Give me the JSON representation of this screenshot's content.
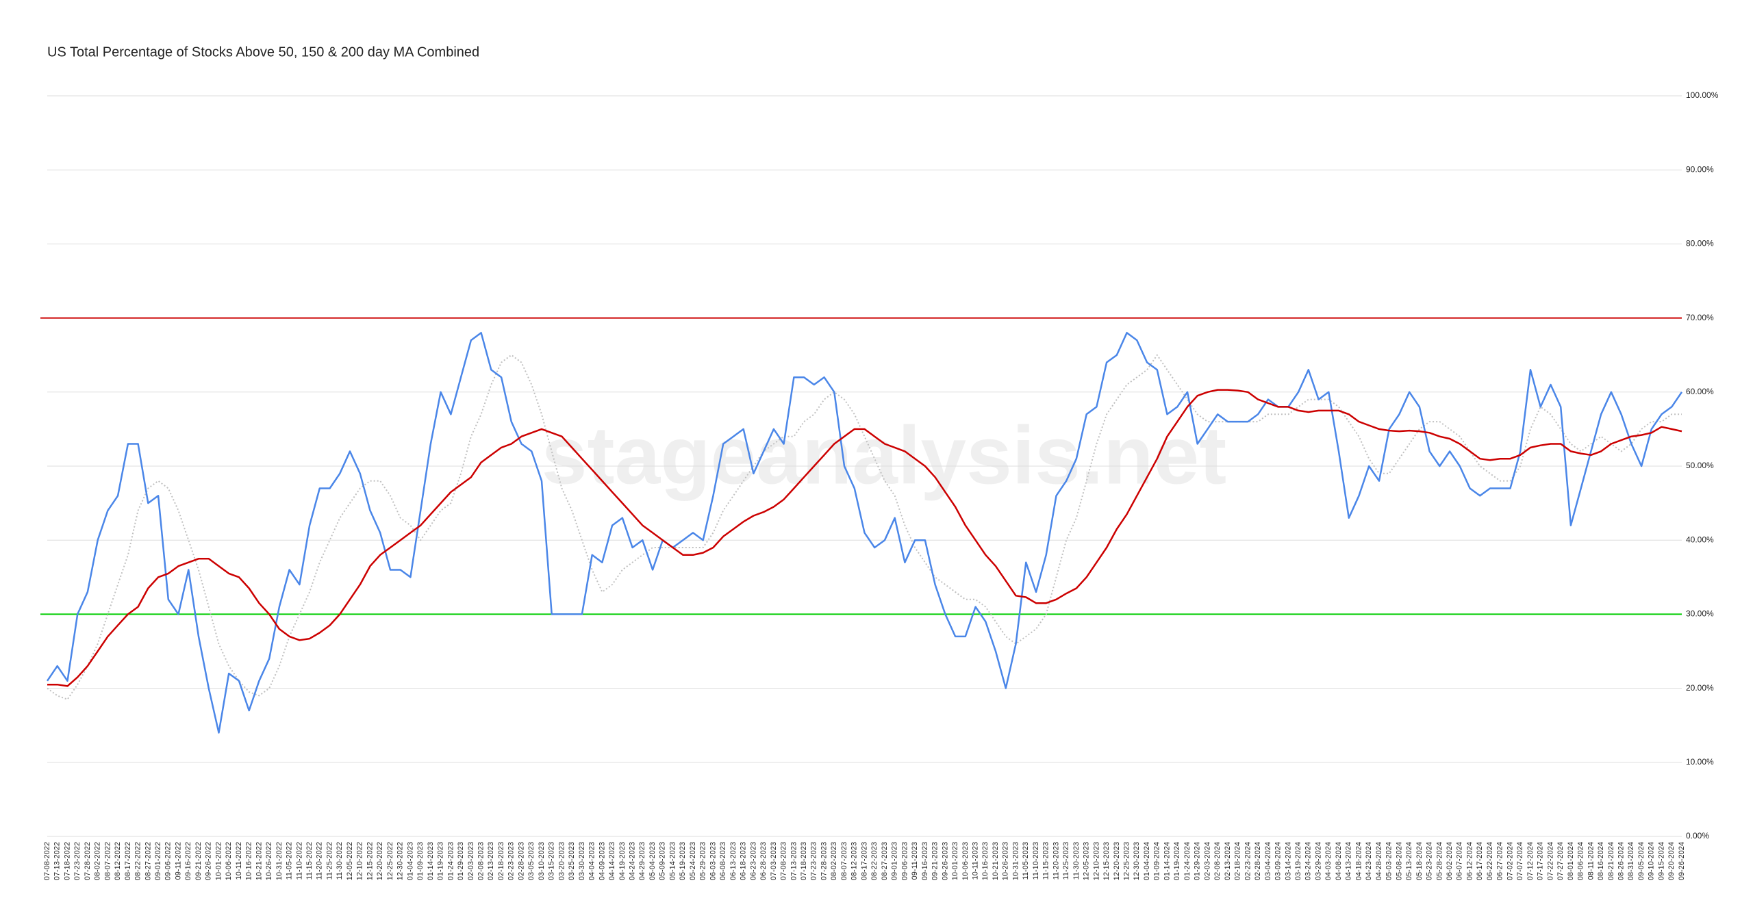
{
  "chart_data": {
    "type": "line",
    "title": "US Total Percentage of Stocks Above 50, 150 & 200 day MA Combined",
    "watermark": "stageanalysis.net",
    "categories": [
      "07-08-2022",
      "07-13-2022",
      "07-18-2022",
      "07-23-2022",
      "07-28-2022",
      "08-02-2022",
      "08-07-2022",
      "08-12-2022",
      "08-17-2022",
      "08-22-2022",
      "08-27-2022",
      "09-01-2022",
      "09-06-2022",
      "09-11-2022",
      "09-16-2022",
      "09-21-2022",
      "09-26-2022",
      "10-01-2022",
      "10-06-2022",
      "10-11-2022",
      "10-16-2022",
      "10-21-2022",
      "10-26-2022",
      "10-31-2022",
      "11-05-2022",
      "11-10-2022",
      "11-15-2022",
      "11-20-2022",
      "11-25-2022",
      "11-30-2022",
      "12-05-2022",
      "12-10-2022",
      "12-15-2022",
      "12-20-2022",
      "12-25-2022",
      "12-30-2022",
      "01-04-2023",
      "01-09-2023",
      "01-14-2023",
      "01-19-2023",
      "01-24-2023",
      "01-29-2023",
      "02-03-2023",
      "02-08-2023",
      "02-13-2023",
      "02-18-2023",
      "02-23-2023",
      "02-28-2023",
      "03-05-2023",
      "03-10-2023",
      "03-15-2023",
      "03-20-2023",
      "03-25-2023",
      "03-30-2023",
      "04-04-2023",
      "04-09-2023",
      "04-14-2023",
      "04-19-2023",
      "04-24-2023",
      "04-29-2023",
      "05-04-2023",
      "05-09-2023",
      "05-14-2023",
      "05-19-2023",
      "05-24-2023",
      "05-29-2023",
      "06-03-2023",
      "06-08-2023",
      "06-13-2023",
      "06-18-2023",
      "06-23-2023",
      "06-28-2023",
      "07-03-2023",
      "07-08-2023",
      "07-13-2023",
      "07-18-2023",
      "07-23-2023",
      "07-28-2023",
      "08-02-2023",
      "08-07-2023",
      "08-12-2023",
      "08-17-2023",
      "08-22-2023",
      "08-27-2023",
      "09-01-2023",
      "09-06-2023",
      "09-11-2023",
      "09-16-2023",
      "09-21-2023",
      "09-26-2023",
      "10-01-2023",
      "10-06-2023",
      "10-11-2023",
      "10-16-2023",
      "10-21-2023",
      "10-26-2023",
      "10-31-2023",
      "11-05-2023",
      "11-10-2023",
      "11-15-2023",
      "11-20-2023",
      "11-25-2023",
      "11-30-2023",
      "12-05-2023",
      "12-10-2023",
      "12-15-2023",
      "12-20-2023",
      "12-25-2023",
      "12-30-2023",
      "01-04-2024",
      "01-09-2024",
      "01-14-2024",
      "01-19-2024",
      "01-24-2024",
      "01-29-2024",
      "02-03-2024",
      "02-08-2024",
      "02-13-2024",
      "02-18-2024",
      "02-23-2024",
      "02-28-2024",
      "03-04-2024",
      "03-09-2024",
      "03-14-2024",
      "03-19-2024",
      "03-24-2024",
      "03-29-2024",
      "04-03-2024",
      "04-08-2024",
      "04-13-2024",
      "04-18-2024",
      "04-23-2024",
      "04-28-2024",
      "05-03-2024",
      "05-08-2024",
      "05-13-2024",
      "05-18-2024",
      "05-23-2024",
      "05-28-2024",
      "06-02-2024",
      "06-07-2024",
      "06-12-2024",
      "06-17-2024",
      "06-22-2024",
      "06-27-2024",
      "07-02-2024",
      "07-07-2024",
      "07-12-2024",
      "07-17-2024",
      "07-22-2024",
      "07-27-2024",
      "08-01-2024",
      "08-06-2024",
      "08-11-2024",
      "08-16-2024",
      "08-21-2024",
      "08-26-2024",
      "08-31-2024",
      "09-05-2024",
      "09-10-2024",
      "09-15-2024",
      "09-20-2024",
      "09-26-2024"
    ],
    "series": [
      {
        "color": "#c0c0c0",
        "line_style": "dotted",
        "values": [
          20,
          19,
          18.5,
          20.5,
          23,
          26,
          30,
          34,
          38,
          44,
          47,
          48,
          47,
          44,
          40,
          36,
          31,
          26,
          23,
          21,
          19.5,
          19,
          20,
          23,
          27,
          30,
          33,
          37,
          40,
          43,
          45,
          47,
          48,
          48,
          46,
          43,
          42,
          40,
          42,
          44,
          45,
          49,
          54,
          57,
          61,
          64,
          65,
          64,
          61,
          57,
          52,
          47,
          44,
          40,
          36,
          33,
          34,
          36,
          37,
          38,
          39,
          39,
          39,
          39,
          39,
          39,
          41,
          44,
          46,
          48,
          50,
          52,
          53,
          54,
          54,
          56,
          57,
          59,
          60,
          59,
          57,
          54,
          51,
          48,
          46,
          42,
          39,
          37,
          35,
          34,
          33,
          32,
          32,
          31,
          29,
          27,
          26,
          27,
          28,
          30,
          35,
          40,
          43,
          48,
          53,
          57,
          59,
          61,
          62,
          63,
          65,
          63,
          61,
          59,
          57,
          56,
          56,
          56,
          56,
          56,
          56,
          57,
          57,
          57,
          58,
          59,
          59,
          59,
          58,
          56,
          54,
          51,
          49,
          49,
          51,
          53,
          55,
          56,
          56,
          55,
          54,
          52,
          50,
          49,
          48,
          48,
          50,
          55,
          58,
          57,
          55,
          53,
          52,
          53,
          54,
          53,
          52,
          53,
          55,
          56,
          56,
          57,
          57
        ]
      },
      {
        "color": "#4a86e8",
        "line_style": "solid",
        "values": [
          21,
          23,
          21,
          30,
          33,
          40,
          44,
          46,
          53,
          53,
          45,
          46,
          32,
          30,
          36,
          27,
          20,
          14,
          22,
          21,
          17,
          21,
          24,
          31,
          36,
          34,
          42,
          47,
          47,
          49,
          52,
          49,
          44,
          41,
          36,
          36,
          35,
          44,
          53,
          60,
          57,
          62,
          67,
          68,
          63,
          62,
          56,
          53,
          52,
          48,
          30,
          30,
          30,
          30,
          38,
          37,
          42,
          43,
          39,
          40,
          36,
          40,
          39,
          40,
          41,
          40,
          46,
          53,
          54,
          55,
          49,
          52,
          55,
          53,
          62,
          62,
          61,
          62,
          60,
          50,
          47,
          41,
          39,
          40,
          43,
          37,
          40,
          40,
          34,
          30,
          27,
          27,
          31,
          29,
          25,
          20,
          26,
          37,
          33,
          38,
          46,
          48,
          51,
          57,
          58,
          64,
          65,
          68,
          67,
          64,
          63,
          57,
          58,
          60,
          53,
          55,
          57,
          56,
          56,
          56,
          57,
          59,
          58,
          58,
          60,
          63,
          59,
          60,
          52,
          43,
          46,
          50,
          48,
          55,
          57,
          60,
          58,
          52,
          50,
          52,
          50,
          47,
          46,
          47,
          47,
          47,
          52,
          63,
          58,
          61,
          58,
          42,
          47,
          52,
          57,
          60,
          57,
          53,
          50,
          55,
          57,
          58,
          60
        ]
      },
      {
        "color": "#cc0000",
        "line_style": "solid",
        "values": [
          20.5,
          20.5,
          20.3,
          21.5,
          23,
          25,
          27,
          28.5,
          30,
          31,
          33.5,
          35,
          35.5,
          36.5,
          37,
          37.5,
          37.5,
          36.5,
          35.5,
          35,
          33.5,
          31.5,
          30,
          28,
          27,
          26.5,
          26.7,
          27.5,
          28.5,
          30,
          32,
          34,
          36.5,
          38,
          39,
          40,
          41,
          42,
          43.5,
          45,
          46.5,
          47.5,
          48.5,
          50.5,
          51.5,
          52.5,
          53,
          54,
          54.5,
          55,
          54.5,
          54,
          52.5,
          51,
          49.5,
          48,
          46.5,
          45,
          43.5,
          42,
          41,
          40,
          39,
          38,
          38,
          38.3,
          39,
          40.5,
          41.5,
          42.5,
          43.3,
          43.8,
          44.5,
          45.5,
          47,
          48.5,
          50,
          51.5,
          53,
          54,
          55,
          55,
          54,
          53,
          52.5,
          52,
          51,
          50,
          48.5,
          46.5,
          44.5,
          42,
          40,
          38,
          36.5,
          34.5,
          32.5,
          32.3,
          31.5,
          31.5,
          32,
          32.8,
          33.5,
          35,
          37,
          39,
          41.5,
          43.5,
          46,
          48.5,
          51,
          54,
          56,
          58,
          59.5,
          60,
          60.3,
          60.3,
          60.2,
          60,
          59,
          58.5,
          58,
          58,
          57.5,
          57.3,
          57.5,
          57.5,
          57.5,
          57,
          56,
          55.5,
          55,
          54.8,
          54.7,
          54.8,
          54.7,
          54.5,
          54,
          53.7,
          53,
          52,
          51,
          50.8,
          51,
          51,
          51.5,
          52.5,
          52.8,
          53,
          53,
          52,
          51.7,
          51.5,
          52,
          53,
          53.5,
          54,
          54.2,
          54.5,
          55.3,
          55,
          54.7
        ]
      }
    ],
    "reference_lines": [
      {
        "value": 70,
        "color": "#cc0000"
      },
      {
        "value": 30,
        "color": "#00cc00"
      }
    ],
    "ylim": [
      0,
      100
    ],
    "yticks": [
      {
        "value": 0,
        "label": "0.00%"
      },
      {
        "value": 10,
        "label": "10.00%"
      },
      {
        "value": 20,
        "label": "20.00%"
      },
      {
        "value": 30,
        "label": "30.00%"
      },
      {
        "value": 40,
        "label": "40.00%"
      },
      {
        "value": 50,
        "label": "50.00%"
      },
      {
        "value": 60,
        "label": "60.00%"
      },
      {
        "value": 70,
        "label": "70.00%"
      },
      {
        "value": 80,
        "label": "80.00%"
      },
      {
        "value": 90,
        "label": "90.00%"
      },
      {
        "value": 100,
        "label": "100.00%"
      }
    ],
    "grid": true
  }
}
